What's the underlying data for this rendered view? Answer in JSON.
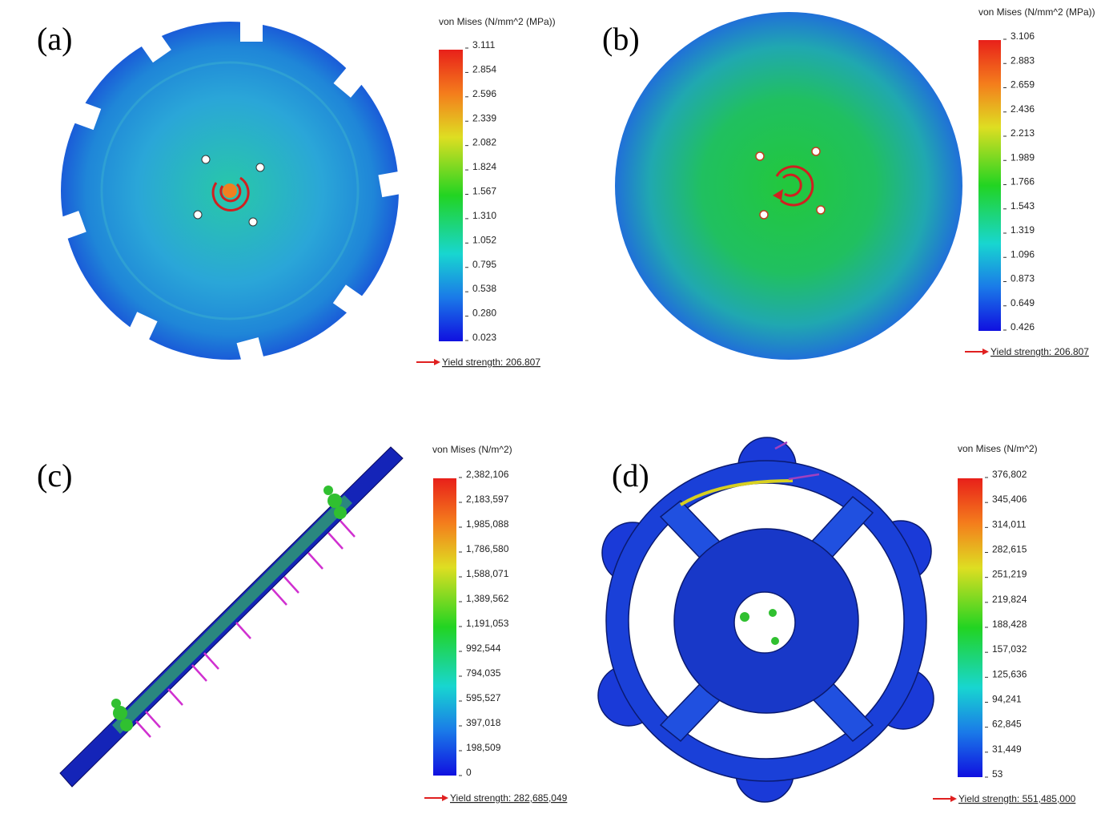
{
  "panels": [
    {
      "label": "(a)",
      "legend_title": "von Mises (N/mm^2 (MPa))",
      "ticks": [
        "3.111",
        "2.854",
        "2.596",
        "2.339",
        "2.082",
        "1.824",
        "1.567",
        "1.310",
        "1.052",
        "0.795",
        "0.538",
        "0.280",
        "0.023"
      ],
      "yield_label": "Yield strength: 206.807"
    },
    {
      "label": "(b)",
      "legend_title": "von Mises (N/mm^2 (MPa))",
      "ticks": [
        "3.106",
        "2.883",
        "2.659",
        "2.436",
        "2.213",
        "1.989",
        "1.766",
        "1.543",
        "1.319",
        "1.096",
        "0.873",
        "0.649",
        "0.426"
      ],
      "yield_label": "Yield strength: 206.807"
    },
    {
      "label": "(c)",
      "legend_title": "von Mises (N/m^2)",
      "ticks": [
        "2,382,106",
        "2,183,597",
        "1,985,088",
        "1,786,580",
        "1,588,071",
        "1,389,562",
        "1,191,053",
        "992,544",
        "794,035",
        "595,527",
        "397,018",
        "198,509",
        "0"
      ],
      "yield_label": "Yield strength: 282,685,049"
    },
    {
      "label": "(d)",
      "legend_title": "von Mises (N/m^2)",
      "ticks": [
        "376,802",
        "345,406",
        "314,011",
        "282,615",
        "251,219",
        "219,824",
        "188,428",
        "157,032",
        "125,636",
        "94,241",
        "62,845",
        "31,449",
        "53"
      ],
      "yield_label": "Yield strength: 551,485,000"
    }
  ]
}
